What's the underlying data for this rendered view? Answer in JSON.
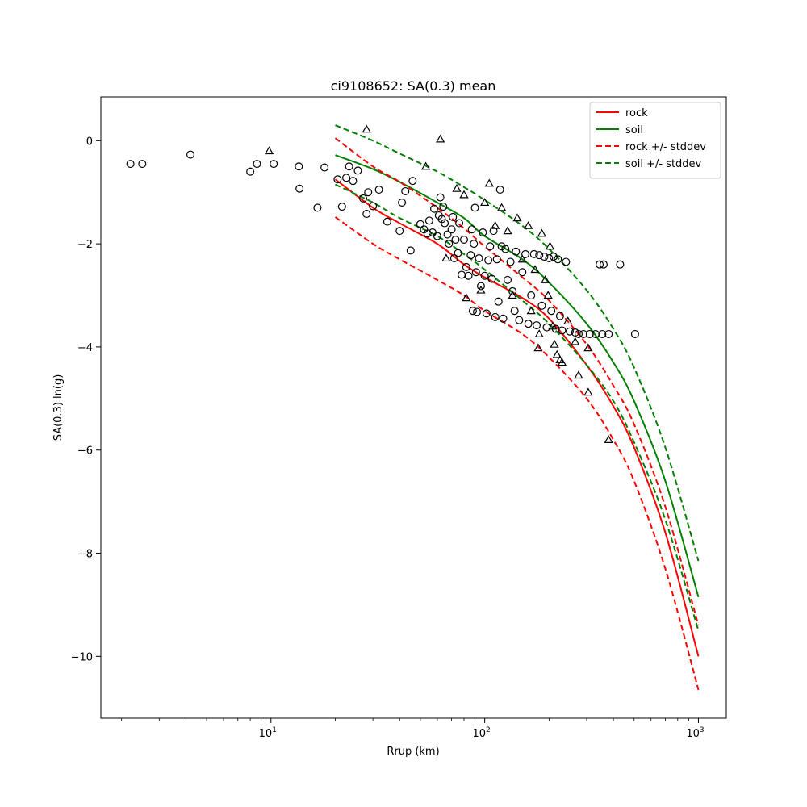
{
  "chart_data": {
    "type": "scatter",
    "title": "ci9108652: SA(0.3) mean",
    "xlabel": "Rrup (km)",
    "ylabel": "SA(0.3) ln(g)",
    "xscale": "log",
    "xlim": [
      1.6,
      1350
    ],
    "ylim": [
      -11.2,
      0.85
    ],
    "xticks": [
      10,
      100,
      1000
    ],
    "xtick_labels": [
      {
        "base": "10",
        "exp": "1"
      },
      {
        "base": "10",
        "exp": "2"
      },
      {
        "base": "10",
        "exp": "3"
      }
    ],
    "yticks": [
      0,
      -2,
      -4,
      -6,
      -8,
      -10
    ],
    "ytick_labels": [
      "0",
      "−2",
      "−4",
      "−6",
      "−8",
      "−10"
    ],
    "grid": false,
    "legend_position": "top-right",
    "legend": [
      {
        "label": "rock",
        "color": "#ff0000",
        "dash": false
      },
      {
        "label": "soil",
        "color": "#008000",
        "dash": false
      },
      {
        "label": "rock +/- stddev",
        "color": "#ff0000",
        "dash": true
      },
      {
        "label": "soil +/- stddev",
        "color": "#008000",
        "dash": true
      }
    ],
    "curves": [
      {
        "key": "rock",
        "color": "#ff0000",
        "dash": false,
        "x": [
          20,
          30,
          40,
          60,
          80,
          100,
          150,
          200,
          300,
          400,
          500,
          700,
          1000
        ],
        "y": [
          -0.75,
          -1.3,
          -1.6,
          -2.0,
          -2.4,
          -2.65,
          -3.05,
          -3.45,
          -4.35,
          -5.15,
          -5.95,
          -7.6,
          -10.0
        ]
      },
      {
        "key": "soil",
        "color": "#008000",
        "dash": false,
        "x": [
          20,
          30,
          40,
          60,
          80,
          100,
          150,
          200,
          300,
          400,
          500,
          700,
          1000
        ],
        "y": [
          -0.28,
          -0.55,
          -0.8,
          -1.2,
          -1.5,
          -1.85,
          -2.3,
          -2.75,
          -3.55,
          -4.3,
          -5.05,
          -6.6,
          -8.85
        ]
      },
      {
        "key": "rock_plus",
        "color": "#ff0000",
        "dash": true,
        "x": [
          20,
          30,
          40,
          60,
          80,
          100,
          150,
          200,
          300,
          400,
          500,
          700,
          1000
        ],
        "y": [
          0.05,
          -0.5,
          -0.8,
          -1.3,
          -1.7,
          -2.05,
          -2.65,
          -3.1,
          -3.95,
          -4.75,
          -5.5,
          -7.1,
          -9.4
        ]
      },
      {
        "key": "rock_minus",
        "color": "#ff0000",
        "dash": true,
        "x": [
          20,
          30,
          40,
          60,
          80,
          100,
          150,
          200,
          300,
          400,
          500,
          700,
          1000
        ],
        "y": [
          -1.48,
          -2.0,
          -2.3,
          -2.7,
          -3.0,
          -3.3,
          -3.75,
          -4.2,
          -5.0,
          -5.8,
          -6.6,
          -8.3,
          -10.65
        ]
      },
      {
        "key": "soil_plus",
        "color": "#008000",
        "dash": true,
        "x": [
          20,
          30,
          40,
          60,
          80,
          100,
          150,
          200,
          300,
          400,
          500,
          700,
          1000
        ],
        "y": [
          0.3,
          0.0,
          -0.25,
          -0.6,
          -0.9,
          -1.15,
          -1.65,
          -2.1,
          -2.9,
          -3.65,
          -4.4,
          -5.95,
          -8.15
        ]
      },
      {
        "key": "soil_minus",
        "color": "#008000",
        "dash": true,
        "x": [
          20,
          30,
          40,
          60,
          80,
          100,
          150,
          200,
          300,
          400,
          500,
          700,
          1000
        ],
        "y": [
          -0.85,
          -1.2,
          -1.5,
          -1.85,
          -2.2,
          -2.5,
          -3.1,
          -3.55,
          -4.35,
          -5.05,
          -5.85,
          -7.35,
          -9.5
        ]
      }
    ],
    "series": [
      {
        "marker": "circle",
        "points": [
          [
            2.2,
            -0.45
          ],
          [
            2.5,
            -0.45
          ],
          [
            4.2,
            -0.27
          ],
          [
            8.0,
            -0.6
          ],
          [
            8.6,
            -0.45
          ],
          [
            10.3,
            -0.45
          ],
          [
            13.5,
            -0.5
          ],
          [
            13.6,
            -0.93
          ],
          [
            16.5,
            -1.3
          ],
          [
            17.8,
            -0.52
          ],
          [
            20.5,
            -0.75
          ],
          [
            21.5,
            -1.28
          ],
          [
            22.5,
            -0.72
          ],
          [
            23.2,
            -0.5
          ],
          [
            24.2,
            -0.78
          ],
          [
            25.5,
            -0.58
          ],
          [
            27.0,
            -1.12
          ],
          [
            28.0,
            -1.42
          ],
          [
            28.5,
            -1.0
          ],
          [
            30.0,
            -1.27
          ],
          [
            32.0,
            -0.95
          ],
          [
            35.0,
            -1.57
          ],
          [
            40.0,
            -1.75
          ],
          [
            41.0,
            -1.2
          ],
          [
            42.5,
            -0.98
          ],
          [
            45.0,
            -2.13
          ],
          [
            46.0,
            -0.78
          ],
          [
            50.0,
            -1.62
          ],
          [
            52.0,
            -1.72
          ],
          [
            54.0,
            -1.8
          ],
          [
            55.0,
            -1.55
          ],
          [
            57.0,
            -1.78
          ],
          [
            58.0,
            -1.32
          ],
          [
            60.0,
            -1.85
          ],
          [
            61.0,
            -1.45
          ],
          [
            62.0,
            -1.1
          ],
          [
            63.0,
            -1.52
          ],
          [
            64.0,
            -1.28
          ],
          [
            65.0,
            -1.6
          ],
          [
            67.0,
            -1.82
          ],
          [
            68.0,
            -2.0
          ],
          [
            70.0,
            -1.72
          ],
          [
            71.0,
            -1.48
          ],
          [
            72.0,
            -2.28
          ],
          [
            73.0,
            -1.92
          ],
          [
            75.0,
            -2.18
          ],
          [
            76.0,
            -1.6
          ],
          [
            78.0,
            -2.6
          ],
          [
            80.0,
            -1.92
          ],
          [
            82.0,
            -2.45
          ],
          [
            84.0,
            -2.62
          ],
          [
            86.0,
            -2.22
          ],
          [
            87.0,
            -1.72
          ],
          [
            88.0,
            -3.3
          ],
          [
            89.0,
            -2.0
          ],
          [
            90.0,
            -1.3
          ],
          [
            91.0,
            -2.55
          ],
          [
            92.0,
            -3.32
          ],
          [
            94.0,
            -2.28
          ],
          [
            96.0,
            -2.82
          ],
          [
            98.0,
            -1.78
          ],
          [
            100.0,
            -2.62
          ],
          [
            102.0,
            -3.35
          ],
          [
            104.0,
            -2.32
          ],
          [
            106.0,
            -2.05
          ],
          [
            108.0,
            -2.68
          ],
          [
            110.0,
            -1.75
          ],
          [
            112.0,
            -3.42
          ],
          [
            114.0,
            -2.3
          ],
          [
            116.0,
            -3.12
          ],
          [
            118.0,
            -0.95
          ],
          [
            120.0,
            -2.05
          ],
          [
            122.0,
            -3.45
          ],
          [
            125.0,
            -2.1
          ],
          [
            128.0,
            -2.7
          ],
          [
            132.0,
            -2.35
          ],
          [
            135.0,
            -2.92
          ],
          [
            138.0,
            -3.3
          ],
          [
            140.0,
            -2.15
          ],
          [
            145.0,
            -3.48
          ],
          [
            150.0,
            -2.55
          ],
          [
            155.0,
            -2.2
          ],
          [
            160.0,
            -3.55
          ],
          [
            165.0,
            -3.0
          ],
          [
            170.0,
            -2.2
          ],
          [
            175.0,
            -3.58
          ],
          [
            180.0,
            -2.22
          ],
          [
            185.0,
            -3.2
          ],
          [
            190.0,
            -2.25
          ],
          [
            195.0,
            -3.62
          ],
          [
            200.0,
            -2.28
          ],
          [
            205.0,
            -3.3
          ],
          [
            210.0,
            -2.25
          ],
          [
            215.0,
            -3.65
          ],
          [
            220.0,
            -2.3
          ],
          [
            225.0,
            -3.4
          ],
          [
            230.0,
            -3.68
          ],
          [
            240.0,
            -2.35
          ],
          [
            250.0,
            -3.7
          ],
          [
            265.0,
            -3.72
          ],
          [
            275.0,
            -3.75
          ],
          [
            290.0,
            -3.75
          ],
          [
            310.0,
            -3.75
          ],
          [
            330.0,
            -3.75
          ],
          [
            345.0,
            -2.4
          ],
          [
            360.0,
            -2.4
          ],
          [
            355.0,
            -3.75
          ],
          [
            380.0,
            -3.75
          ],
          [
            430.0,
            -2.4
          ],
          [
            505.0,
            -3.75
          ]
        ]
      },
      {
        "marker": "triangle",
        "points": [
          [
            9.8,
            -0.2
          ],
          [
            28.0,
            0.22
          ],
          [
            53.0,
            -0.5
          ],
          [
            62.0,
            0.03
          ],
          [
            66.0,
            -2.28
          ],
          [
            74.0,
            -0.93
          ],
          [
            80.0,
            -1.05
          ],
          [
            82.0,
            -3.05
          ],
          [
            96.0,
            -2.9
          ],
          [
            100.0,
            -1.2
          ],
          [
            105.0,
            -0.83
          ],
          [
            112.0,
            -1.65
          ],
          [
            120.0,
            -1.3
          ],
          [
            128.0,
            -1.75
          ],
          [
            135.0,
            -3.0
          ],
          [
            142.0,
            -1.5
          ],
          [
            150.0,
            -2.3
          ],
          [
            160.0,
            -1.65
          ],
          [
            165.0,
            -3.3
          ],
          [
            172.0,
            -2.5
          ],
          [
            178.0,
            -4.02
          ],
          [
            180.0,
            -3.75
          ],
          [
            185.0,
            -1.8
          ],
          [
            192.0,
            -2.7
          ],
          [
            198.0,
            -3.0
          ],
          [
            202.0,
            -2.05
          ],
          [
            208.0,
            -3.6
          ],
          [
            212.0,
            -3.95
          ],
          [
            218.0,
            -4.15
          ],
          [
            225.0,
            -4.25
          ],
          [
            230.0,
            -4.3
          ],
          [
            245.0,
            -3.5
          ],
          [
            265.0,
            -3.9
          ],
          [
            275.0,
            -4.55
          ],
          [
            305.0,
            -4.02
          ],
          [
            305.0,
            -4.88
          ],
          [
            380.0,
            -5.8
          ]
        ]
      }
    ]
  }
}
